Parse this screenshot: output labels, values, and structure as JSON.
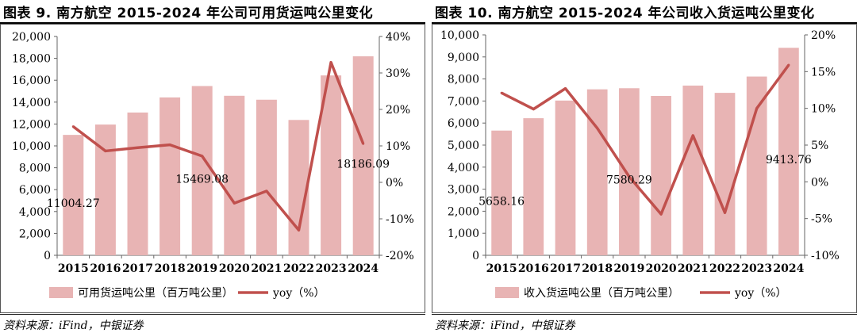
{
  "chart_data": [
    {
      "type": "bar",
      "title": "图表 9. 南方航空 2015-2024 年公司可用货运吨公里变化",
      "categories": [
        "2015",
        "2016",
        "2017",
        "2018",
        "2019",
        "2020",
        "2021",
        "2022",
        "2023",
        "2024"
      ],
      "series": [
        {
          "name": "可用货运吨公里（百万吨公里）",
          "kind": "bar",
          "axis": "left",
          "values": [
            11004.27,
            11950,
            13050,
            14430,
            15469.08,
            14580,
            14220,
            12370,
            16440,
            18186.09
          ],
          "color": "#E8B4B4"
        },
        {
          "name": "yoy（%）",
          "kind": "line",
          "axis": "right",
          "values": [
            15.3,
            8.6,
            9.5,
            10.3,
            7.2,
            -5.7,
            -2.4,
            -13.1,
            32.9,
            10.6
          ],
          "color": "#C0504D"
        }
      ],
      "left_axis": {
        "min": 0,
        "max": 20000,
        "step": 2000,
        "ticks": [
          "0",
          "2,000",
          "4,000",
          "6,000",
          "8,000",
          "10,000",
          "12,000",
          "14,000",
          "16,000",
          "18,000",
          "20,000"
        ]
      },
      "right_axis": {
        "min": -20,
        "max": 40,
        "step": 10,
        "ticks": [
          "-20%",
          "-10%",
          "0%",
          "10%",
          "20%",
          "30%",
          "40%"
        ]
      },
      "annotations": [
        {
          "category": "2015",
          "text": "11004.27"
        },
        {
          "category": "2019",
          "text": "15469.08"
        },
        {
          "category": "2024",
          "text": "18186.09"
        }
      ],
      "source": "资料来源：iFind，中银证券",
      "legend_position": "bottom"
    },
    {
      "type": "bar",
      "title": "图表 10. 南方航空 2015-2024 年公司收入货运吨公里变化",
      "categories": [
        "2015",
        "2016",
        "2017",
        "2018",
        "2019",
        "2020",
        "2021",
        "2022",
        "2023",
        "2024"
      ],
      "series": [
        {
          "name": "收入货运吨公里（百万吨公里）",
          "kind": "bar",
          "axis": "left",
          "values": [
            5658.16,
            6220,
            7020,
            7530,
            7580.29,
            7230,
            7700,
            7370,
            8110,
            9413.76
          ],
          "color": "#E8B4B4"
        },
        {
          "name": "yoy（%）",
          "kind": "line",
          "axis": "right",
          "values": [
            12.1,
            9.9,
            12.7,
            7.3,
            0.7,
            -4.4,
            6.3,
            -4.2,
            10.0,
            15.9
          ],
          "color": "#C0504D"
        }
      ],
      "left_axis": {
        "min": 0,
        "max": 10000,
        "step": 1000,
        "ticks": [
          "0",
          "1,000",
          "2,000",
          "3,000",
          "4,000",
          "5,000",
          "6,000",
          "7,000",
          "8,000",
          "9,000",
          "10,000"
        ]
      },
      "right_axis": {
        "min": -10,
        "max": 20,
        "step": 5,
        "ticks": [
          "-10%",
          "-5%",
          "0%",
          "5%",
          "10%",
          "15%",
          "20%"
        ]
      },
      "annotations": [
        {
          "category": "2015",
          "text": "5658.16"
        },
        {
          "category": "2019",
          "text": "7580.29"
        },
        {
          "category": "2024",
          "text": "9413.76"
        }
      ],
      "source": "资料来源：iFind，中银证券",
      "legend_position": "bottom"
    }
  ]
}
